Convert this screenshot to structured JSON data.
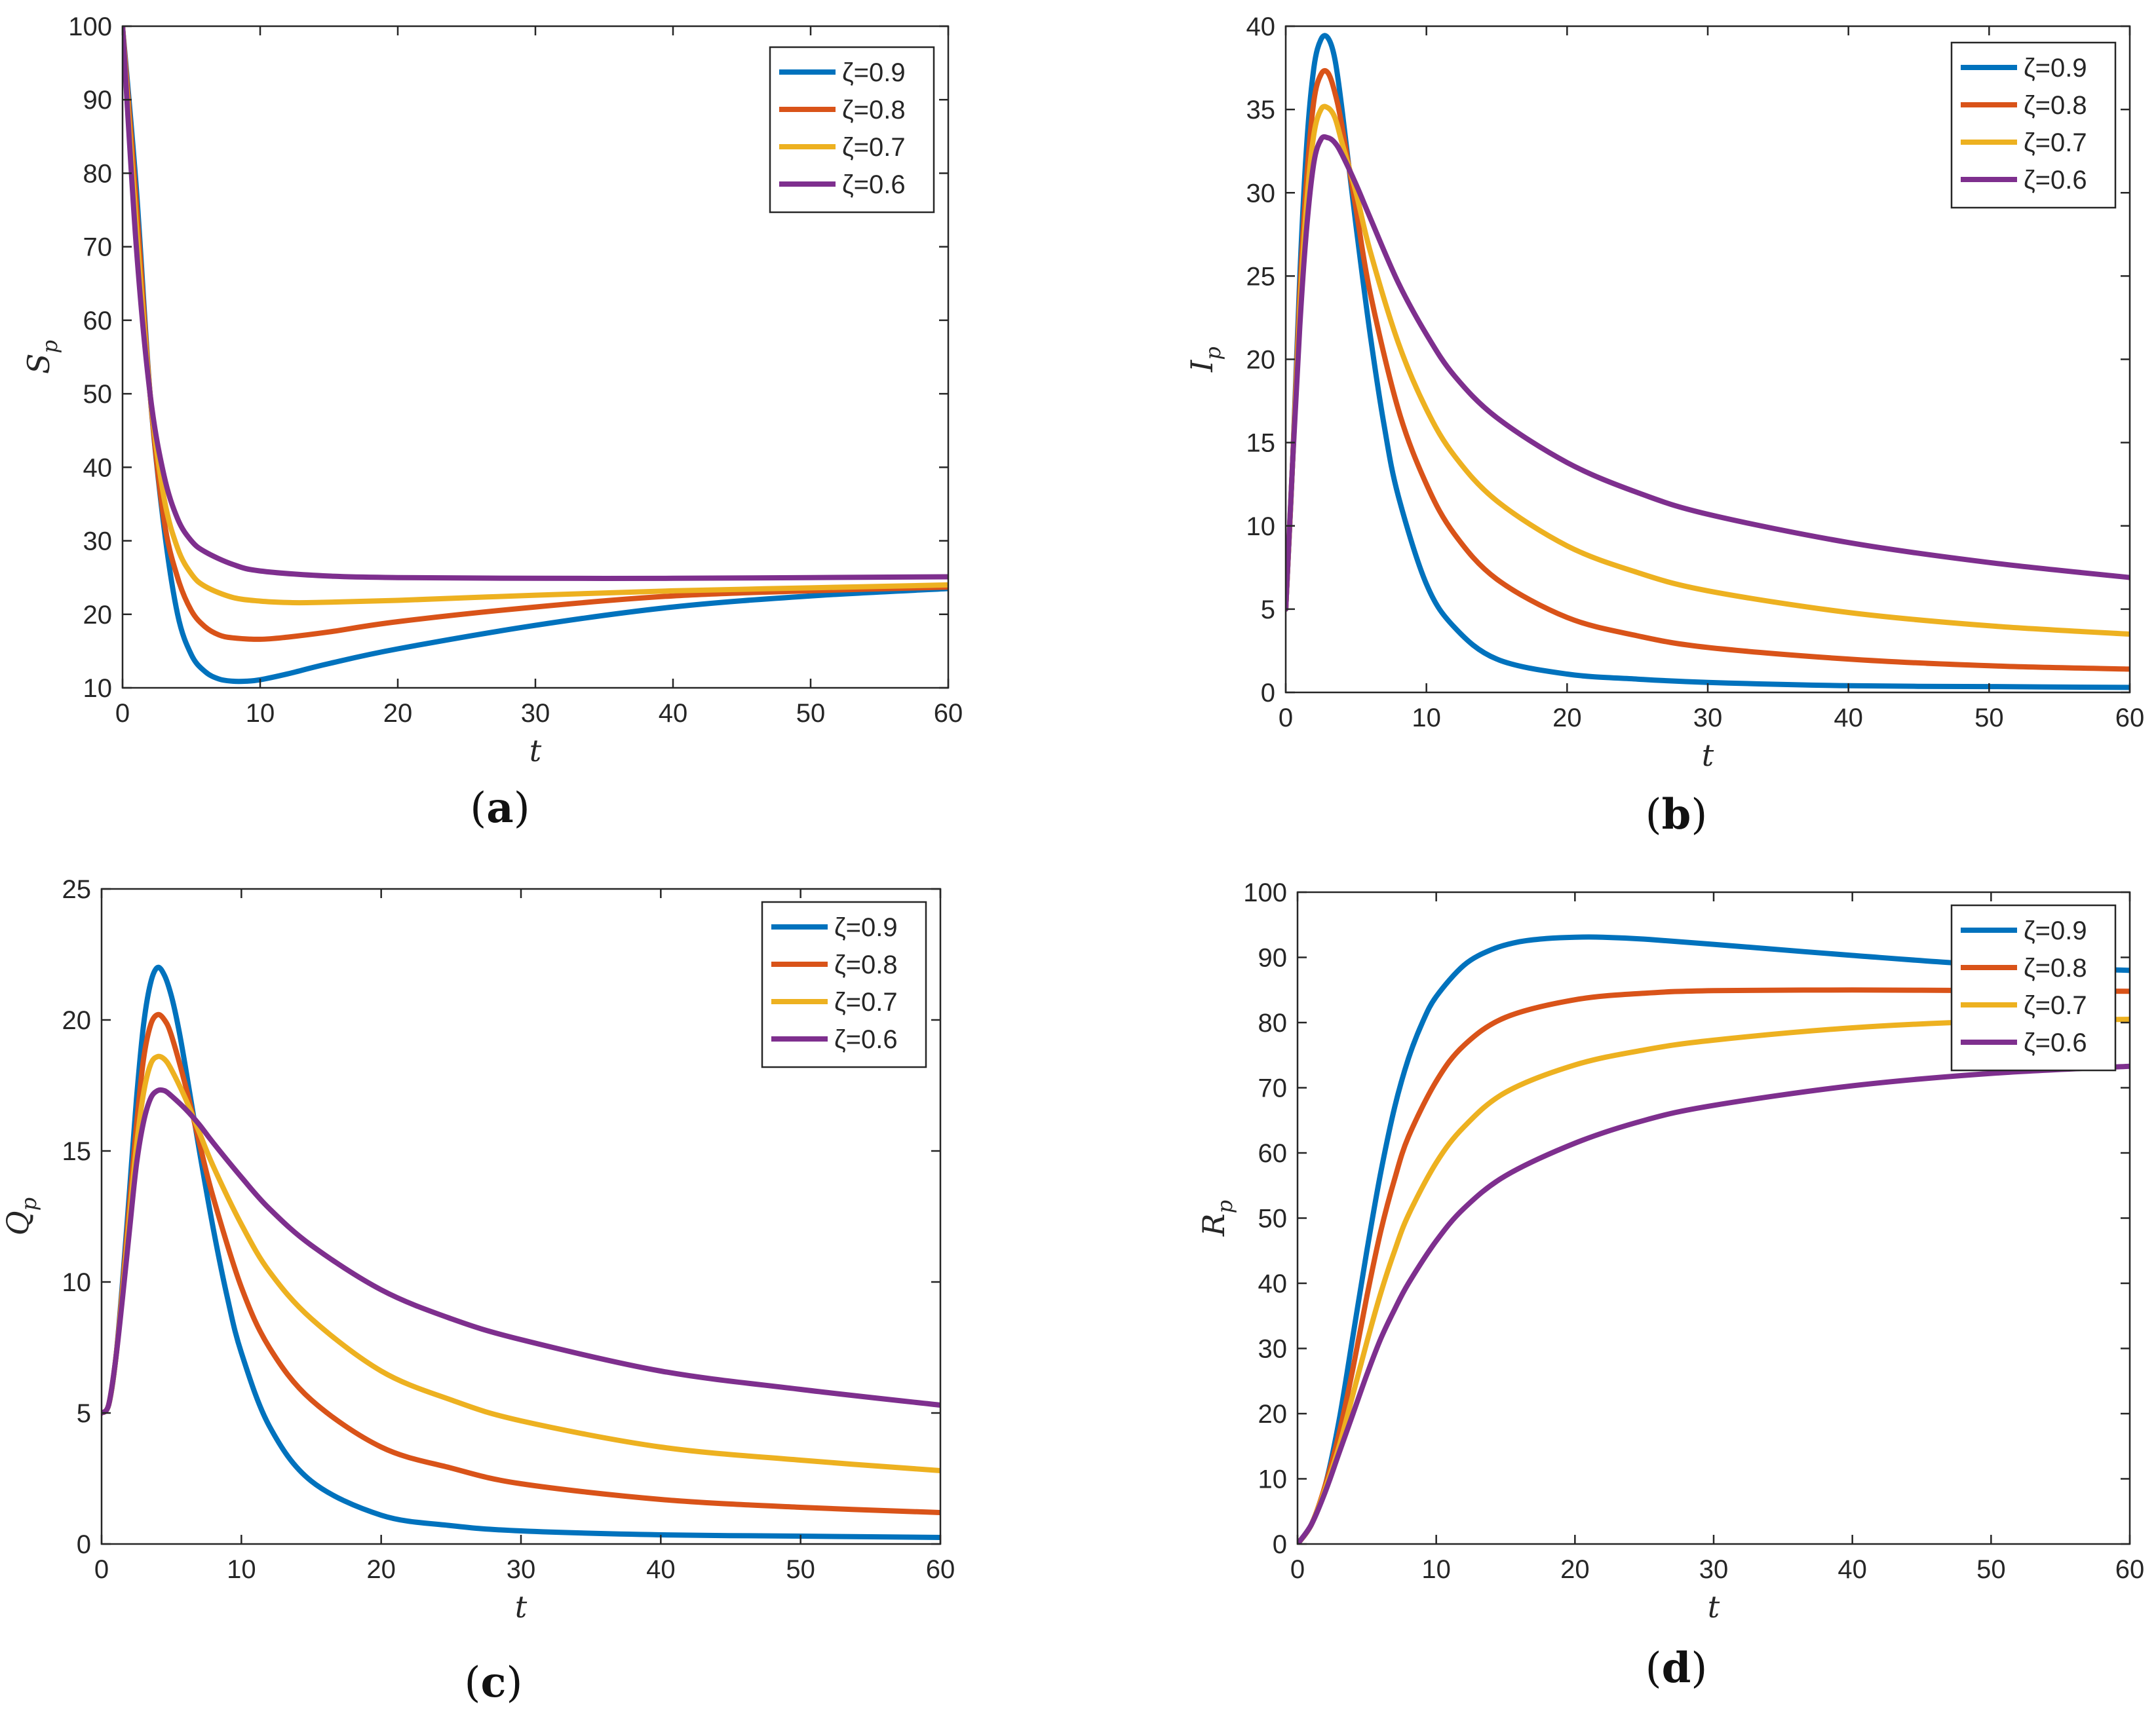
{
  "chart_data": [
    {
      "type": "line",
      "caption": "a",
      "xlabel": "t",
      "ylabel": "S",
      "ylabel_sub": "p",
      "xlim": [
        0,
        60
      ],
      "ylim": [
        10,
        100
      ],
      "xticks": [
        0,
        10,
        20,
        30,
        40,
        50,
        60
      ],
      "yticks": [
        10,
        20,
        30,
        40,
        50,
        60,
        70,
        80,
        90,
        100
      ],
      "legend_position": "top-right",
      "series": [
        {
          "name": "ζ=0.9",
          "color": "#0072BD",
          "x": [
            0,
            1,
            2,
            3,
            4,
            5,
            6,
            7,
            8,
            9,
            10,
            12,
            15,
            20,
            30,
            40,
            50,
            60
          ],
          "values": [
            100,
            78,
            50,
            32,
            20,
            14.5,
            12.2,
            11.2,
            10.9,
            10.9,
            11.1,
            11.9,
            13.3,
            15.3,
            18.5,
            21,
            22.5,
            23.5
          ]
        },
        {
          "name": "ζ=0.8",
          "color": "#D95319",
          "x": [
            0,
            1,
            2,
            3,
            4,
            5,
            6,
            7,
            8,
            10,
            12,
            15,
            20,
            30,
            40,
            50,
            60
          ],
          "values": [
            100,
            76,
            50,
            33,
            25,
            20.5,
            18.3,
            17.2,
            16.8,
            16.6,
            16.9,
            17.6,
            19,
            21,
            22.5,
            23.2,
            23.7
          ]
        },
        {
          "name": "ζ=0.7",
          "color": "#EDB120",
          "x": [
            0,
            1,
            2,
            3,
            4,
            5,
            6,
            8,
            10,
            12,
            14,
            20,
            30,
            40,
            50,
            60
          ],
          "values": [
            100,
            73,
            50,
            36,
            29,
            25.5,
            23.8,
            22.3,
            21.8,
            21.6,
            21.6,
            21.9,
            22.6,
            23.2,
            23.6,
            24
          ]
        },
        {
          "name": "ζ=0.6",
          "color": "#7E2F8E",
          "x": [
            0,
            1,
            2,
            3,
            4,
            5,
            6,
            8,
            10,
            15,
            20,
            30,
            40,
            50,
            60
          ],
          "values": [
            100,
            70,
            50,
            39,
            33,
            30,
            28.5,
            26.8,
            25.9,
            25.2,
            25,
            24.9,
            24.9,
            25,
            25.1
          ]
        }
      ]
    },
    {
      "type": "line",
      "caption": "b",
      "xlabel": "t",
      "ylabel": "I",
      "ylabel_sub": "p",
      "xlim": [
        0,
        60
      ],
      "ylim": [
        0,
        40
      ],
      "xticks": [
        0,
        10,
        20,
        30,
        40,
        50,
        60
      ],
      "yticks": [
        0,
        5,
        10,
        15,
        20,
        25,
        30,
        35,
        40
      ],
      "legend_position": "top-right",
      "series": [
        {
          "name": "ζ=0.9",
          "color": "#0072BD",
          "x": [
            0,
            0.5,
            1,
            1.5,
            2,
            2.5,
            3,
            3.5,
            4,
            5,
            6,
            7,
            8,
            10,
            12,
            15,
            20,
            25,
            30,
            40,
            50,
            60
          ],
          "values": [
            5,
            14,
            25,
            33,
            37.5,
            39.2,
            39.3,
            38,
            35,
            28,
            21.5,
            16,
            11.8,
            6.5,
            3.9,
            2,
            1.1,
            0.8,
            0.6,
            0.4,
            0.35,
            0.3
          ]
        },
        {
          "name": "ζ=0.8",
          "color": "#D95319",
          "x": [
            0,
            0.5,
            1,
            1.5,
            2,
            2.5,
            3,
            3.5,
            4,
            5,
            6,
            8,
            10,
            12,
            15,
            20,
            25,
            30,
            40,
            50,
            60
          ],
          "values": [
            5,
            14,
            24,
            31,
            35.5,
            37.1,
            37.2,
            36,
            34,
            29,
            24,
            17,
            12.5,
            9.5,
            6.8,
            4.5,
            3.4,
            2.7,
            2,
            1.6,
            1.4
          ]
        },
        {
          "name": "ζ=0.7",
          "color": "#EDB120",
          "x": [
            0,
            0.5,
            1,
            1.5,
            2,
            2.5,
            3,
            3.5,
            4,
            5,
            6,
            8,
            10,
            12,
            15,
            20,
            25,
            30,
            40,
            50,
            60
          ],
          "values": [
            5,
            14,
            23,
            29.5,
            33.5,
            35,
            35.1,
            34.5,
            33,
            30,
            26.5,
            21,
            17,
            14.2,
            11.5,
            8.8,
            7.2,
            6.1,
            4.8,
            4,
            3.5
          ]
        },
        {
          "name": "ζ=0.6",
          "color": "#7E2F8E",
          "x": [
            0,
            0.5,
            1,
            1.5,
            2,
            2.5,
            3,
            3.5,
            4,
            5,
            6,
            8,
            10,
            12,
            15,
            20,
            25,
            30,
            40,
            50,
            60
          ],
          "values": [
            5,
            14,
            22,
            28,
            31.8,
            33.2,
            33.3,
            33,
            32.3,
            30.5,
            28.5,
            24.6,
            21.5,
            19,
            16.5,
            13.8,
            12,
            10.7,
            9,
            7.8,
            6.9
          ]
        }
      ]
    },
    {
      "type": "line",
      "caption": "c",
      "xlabel": "t",
      "ylabel": "Q",
      "ylabel_sub": "p",
      "xlim": [
        0,
        60
      ],
      "ylim": [
        0,
        25
      ],
      "xticks": [
        0,
        10,
        20,
        30,
        40,
        50,
        60
      ],
      "yticks": [
        0,
        5,
        10,
        15,
        20,
        25
      ],
      "legend_position": "top-right",
      "series": [
        {
          "name": "ζ=0.9",
          "color": "#0072BD",
          "x": [
            0,
            0.5,
            1,
            1.5,
            2,
            2.5,
            3,
            3.5,
            4,
            4.5,
            5,
            5.5,
            6,
            7,
            8,
            9,
            10,
            12,
            15,
            20,
            25,
            30,
            40,
            50,
            60
          ],
          "values": [
            5,
            5.3,
            7,
            10,
            13.5,
            17,
            19.8,
            21.4,
            22,
            21.7,
            20.9,
            19.7,
            18.2,
            15,
            12,
            9.4,
            7.3,
            4.5,
            2.4,
            1.1,
            0.7,
            0.5,
            0.35,
            0.3,
            0.25
          ]
        },
        {
          "name": "ζ=0.8",
          "color": "#D95319",
          "x": [
            0,
            0.5,
            1,
            1.5,
            2,
            2.5,
            3,
            3.5,
            4,
            4.5,
            5,
            6,
            7,
            8,
            10,
            12,
            15,
            20,
            25,
            30,
            40,
            50,
            60
          ],
          "values": [
            5,
            5.3,
            7,
            9.8,
            13,
            16,
            18.5,
            19.8,
            20.2,
            20,
            19.4,
            17.5,
            15.3,
            13.2,
            9.8,
            7.5,
            5.5,
            3.7,
            2.9,
            2.3,
            1.7,
            1.4,
            1.2
          ]
        },
        {
          "name": "ζ=0.7",
          "color": "#EDB120",
          "x": [
            0,
            0.5,
            1,
            1.5,
            2,
            2.5,
            3,
            3.5,
            4,
            4.5,
            5,
            6,
            7,
            8,
            10,
            12,
            15,
            20,
            25,
            30,
            40,
            50,
            60
          ],
          "values": [
            5,
            5.3,
            7,
            9.6,
            12.5,
            15.2,
            17.2,
            18.3,
            18.6,
            18.5,
            18.1,
            17,
            15.7,
            14.4,
            12.2,
            10.4,
            8.6,
            6.6,
            5.5,
            4.7,
            3.7,
            3.2,
            2.8
          ]
        },
        {
          "name": "ζ=0.6",
          "color": "#7E2F8E",
          "x": [
            0,
            0.5,
            1,
            1.5,
            2,
            2.5,
            3,
            3.5,
            4,
            4.5,
            5,
            6,
            7,
            8,
            10,
            12,
            15,
            20,
            25,
            30,
            40,
            50,
            60
          ],
          "values": [
            5,
            5.3,
            7,
            9.4,
            12,
            14.5,
            16.1,
            17,
            17.3,
            17.3,
            17.1,
            16.6,
            16,
            15.3,
            14,
            12.8,
            11.4,
            9.7,
            8.6,
            7.8,
            6.6,
            5.9,
            5.3
          ]
        }
      ]
    },
    {
      "type": "line",
      "caption": "d",
      "xlabel": "t",
      "ylabel": "R",
      "ylabel_sub": "p",
      "xlim": [
        0,
        60
      ],
      "ylim": [
        0,
        100
      ],
      "xticks": [
        0,
        10,
        20,
        30,
        40,
        50,
        60
      ],
      "yticks": [
        0,
        10,
        20,
        30,
        40,
        50,
        60,
        70,
        80,
        90,
        100
      ],
      "legend_position": "top-right",
      "series": [
        {
          "name": "ζ=0.9",
          "color": "#0072BD",
          "x": [
            0,
            1,
            2,
            3,
            4,
            5,
            6,
            7,
            8,
            9,
            10,
            12,
            14,
            16,
            18,
            20,
            22,
            25,
            30,
            40,
            50,
            60
          ],
          "values": [
            0,
            3,
            9,
            19,
            32,
            45,
            57,
            67,
            74.5,
            80,
            84,
            88.8,
            91.2,
            92.4,
            92.9,
            93.1,
            93.1,
            92.8,
            92,
            90.3,
            88.8,
            88
          ]
        },
        {
          "name": "ζ=0.8",
          "color": "#D95319",
          "x": [
            0,
            1,
            2,
            3,
            4,
            5,
            6,
            7,
            8,
            10,
            12,
            15,
            20,
            25,
            30,
            40,
            50,
            60
          ],
          "values": [
            0,
            3,
            9,
            17,
            27,
            38,
            48,
            56,
            62.5,
            71,
            76.5,
            80.8,
            83.5,
            84.5,
            84.9,
            85,
            84.9,
            84.8
          ]
        },
        {
          "name": "ζ=0.7",
          "color": "#EDB120",
          "x": [
            0,
            1,
            2,
            3,
            4,
            5,
            6,
            7,
            8,
            10,
            12,
            15,
            20,
            25,
            30,
            40,
            50,
            60
          ],
          "values": [
            0,
            3,
            8.5,
            15,
            23,
            31,
            38.5,
            45,
            50.5,
            58.5,
            64,
            69.3,
            73.5,
            75.8,
            77.3,
            79.2,
            80.2,
            80.5
          ]
        },
        {
          "name": "ζ=0.6",
          "color": "#7E2F8E",
          "x": [
            0,
            1,
            2,
            3,
            4,
            5,
            6,
            7,
            8,
            10,
            12,
            15,
            20,
            25,
            30,
            40,
            50,
            60
          ],
          "values": [
            0,
            3,
            8,
            14,
            20,
            26,
            31.5,
            36,
            40,
            46.5,
            51.5,
            56.5,
            61.5,
            65,
            67.3,
            70.3,
            72.2,
            73.3
          ]
        }
      ]
    }
  ]
}
